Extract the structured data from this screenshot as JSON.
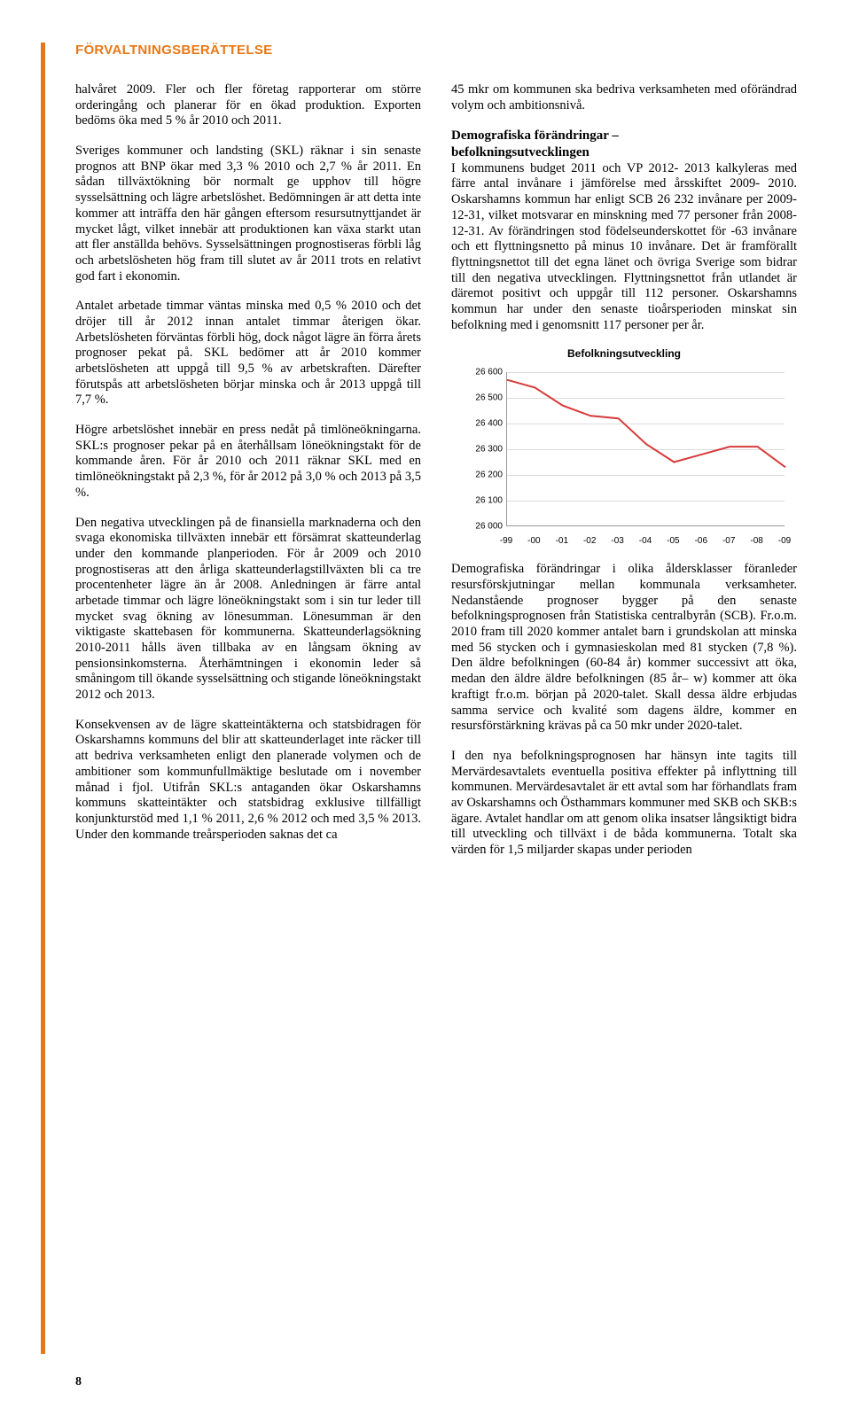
{
  "header": "FÖRVALTNINGSBERÄTTELSE",
  "page_number": "8",
  "left_paragraphs": [
    "halvåret 2009. Fler och fler företag rapporterar om större orderingång och planerar för en ökad produktion. Exporten bedöms öka med 5 % år 2010 och 2011.",
    "Sveriges kommuner och landsting (SKL) räknar i sin senaste prognos att BNP ökar med 3,3 % 2010 och 2,7 % år 2011. En sådan tillväxtökning bör normalt ge upphov till högre sysselsättning och lägre arbetslöshet. Bedömningen är att detta inte kommer att inträffa den här gången eftersom resursutnyttjandet är mycket lågt, vilket innebär att produktionen kan växa starkt utan att fler anställda behövs. Sysselsättningen prognostiseras förbli låg och arbetslösheten hög fram till slutet av år 2011 trots en relativt god fart i ekonomin.",
    "Antalet arbetade timmar väntas minska med 0,5 % 2010 och det dröjer till år 2012 innan antalet timmar återigen ökar. Arbetslösheten förväntas förbli hög, dock något lägre än förra årets prognoser pekat på. SKL bedömer att år 2010 kommer arbetslösheten att uppgå till 9,5 % av arbetskraften. Därefter förutspås att arbetslösheten börjar minska och år 2013 uppgå till 7,7 %.",
    "Högre arbetslöshet innebär en press nedåt på timlöneökningarna. SKL:s prognoser pekar på en återhållsam löneökningstakt för de kommande åren. För år 2010 och 2011 räknar SKL med en timlöneökningstakt på 2,3 %, för år 2012 på 3,0 % och 2013 på 3,5 %.",
    "Den negativa utvecklingen på de finansiella marknaderna och den svaga ekonomiska tillväxten innebär ett försämrat skatteunderlag under den kommande planperioden. För år 2009 och 2010 prognostiseras att den årliga skatteunderlagstillväxten bli ca tre procentenheter lägre än år 2008. Anledningen är färre antal arbetade timmar och lägre löneökningstakt som i sin tur leder till mycket svag ökning av lönesumman. Lönesumman är den viktigaste skattebasen för kommunerna. Skatteunderlagsökning 2010-2011 hålls även tillbaka av en långsam ökning av pensionsinkomsterna. Återhämtningen i ekonomin leder så småningom till ökande sysselsättning och stigande löneökningstakt 2012 och 2013.",
    "Konsekvensen av de lägre skatteintäkterna och statsbidragen för Oskarshamns kommuns del blir att skatteunderlaget inte räcker till att bedriva verksamheten enligt den planerade volymen och de ambitioner som kommunfullmäktige beslutade om i november månad i fjol. Utifrån SKL:s antaganden ökar Oskarshamns kommuns skatteintäkter och statsbidrag exklusive tillfälligt konjunkturstöd med 1,1 % 2011, 2,6 % 2012 och med 3,5 % 2013. Under den kommande treårsperioden saknas det ca"
  ],
  "right_top_para": "45 mkr om kommunen ska bedriva verksamheten med oförändrad volym och ambitionsnivå.",
  "section2_title_line1": "Demografiska förändringar –",
  "section2_title_line2": "befolkningsutvecklingen",
  "section2_body": "I kommunens budget 2011 och VP 2012- 2013 kalkyleras med färre antal invånare i jämförelse med årsskiftet 2009- 2010. Oskarshamns kommun har enligt SCB 26 232 invånare per 2009-12-31, vilket motsvarar en minskning med 77 personer från 2008-12-31. Av förändringen stod födelseunderskottet för -63 invånare och ett flyttningsnetto på minus 10 invånare. Det är framförallt flyttningsnettot till det egna länet och övriga Sverige som bidrar till den negativa utvecklingen. Flyttningsnettot från utlandet är däremot positivt och uppgår till 112 personer. Oskarshamns kommun har under den senaste tioårsperioden minskat sin befolkning med i genomsnitt 117 personer per år.",
  "chart": {
    "type": "line",
    "title": "Befolkningsutveckling",
    "x_labels": [
      "-99",
      "-00",
      "-01",
      "-02",
      "-03",
      "-04",
      "-05",
      "-06",
      "-07",
      "-08",
      "-09"
    ],
    "y_ticks": [
      26000,
      26100,
      26200,
      26300,
      26400,
      26500,
      26600
    ],
    "ylim": [
      26000,
      26600
    ],
    "values": [
      26570,
      26540,
      26470,
      26430,
      26420,
      26320,
      26250,
      26280,
      26310,
      26310,
      26230
    ],
    "line_color": "#d83a3a",
    "line_width": 2,
    "grid_color": "#dcdcdc",
    "axis_color": "#999999",
    "background_color": "#ffffff",
    "tick_fontsize": 10,
    "title_fontsize": 12
  },
  "right_after_chart": [
    "Demografiska förändringar i olika åldersklasser föranleder resursförskjutningar mellan kommunala verksamheter. Nedanstående prognoser bygger på den senaste befolkningsprognosen från Statistiska centralbyrån (SCB). Fr.o.m. 2010 fram till 2020 kommer antalet barn i grundskolan att minska med 56 stycken och i gymnasieskolan med 81 stycken (7,8 %). Den äldre befolkningen (60-84 år) kommer successivt att öka, medan den äldre äldre befolkningen (85 år– w) kommer att öka kraftigt fr.o.m. början på 2020-talet. Skall dessa äldre erbjudas samma service och kvalité som dagens äldre, kommer en resursförstärkning krävas på ca 50 mkr under 2020-talet.",
    "I den nya befolkningsprognosen har hänsyn inte tagits till Mervärdesavtalets eventuella positiva effekter på inflyttning till kommunen. Mervärdesavtalet är ett avtal som har förhandlats fram av Oskarshamns och Östhammars kommuner med SKB och SKB:s ägare. Avtalet handlar om att genom olika insatser långsiktigt bidra till utveckling och tillväxt i de båda kommunerna. Totalt ska värden för 1,5 miljarder skapas under perioden"
  ]
}
